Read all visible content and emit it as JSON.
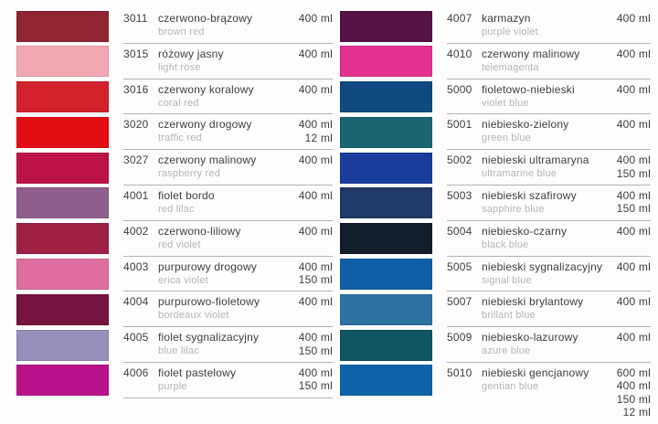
{
  "palette": {
    "background": "#fdfdfd",
    "text": "#3d3d3c",
    "muted": "#b5b4b3",
    "separator": "#b3b2b1"
  },
  "left_column": {
    "rows": [
      {
        "code": "3011",
        "name_pl": "czerwono-brązowy",
        "name_en": "brown red",
        "volumes": [
          "400 ml"
        ],
        "swatch_hex": "#8f2433"
      },
      {
        "code": "3015",
        "name_pl": "różowy jasny",
        "name_en": "light rose",
        "volumes": [
          "400 ml"
        ],
        "swatch_hex": "#f1a7b2"
      },
      {
        "code": "3016",
        "name_pl": "czerwony koralowy",
        "name_en": "coral red",
        "volumes": [
          "400 ml"
        ],
        "swatch_hex": "#d2212d"
      },
      {
        "code": "3020",
        "name_pl": "czerwony drogowy",
        "name_en": "traffic red",
        "volumes": [
          "400 ml",
          "12 ml"
        ],
        "swatch_hex": "#e30e14"
      },
      {
        "code": "3027",
        "name_pl": "czerwony malinowy",
        "name_en": "raspberry red",
        "volumes": [
          "400 ml"
        ],
        "swatch_hex": "#bc1347"
      },
      {
        "code": "4001",
        "name_pl": "fiolet bordo",
        "name_en": "red lilac",
        "volumes": [
          "400 ml"
        ],
        "swatch_hex": "#8f5e8c"
      },
      {
        "code": "4002",
        "name_pl": "czerwono-liliowy",
        "name_en": "red violet",
        "volumes": [
          "400 ml"
        ],
        "swatch_hex": "#9d2043"
      },
      {
        "code": "4003",
        "name_pl": "purpurowy drogowy",
        "name_en": "erica violet",
        "volumes": [
          "400 ml",
          "150 ml"
        ],
        "swatch_hex": "#de70a0"
      },
      {
        "code": "4004",
        "name_pl": "purpurowo-fioletowy",
        "name_en": "bordeaux violet",
        "volumes": [
          "400 ml"
        ],
        "swatch_hex": "#75123e"
      },
      {
        "code": "4005",
        "name_pl": "fiolet sygnalizacyjny",
        "name_en": "blue lilac",
        "volumes": [
          "400 ml",
          "150 ml"
        ],
        "swatch_hex": "#9690ba"
      },
      {
        "code": "4006",
        "name_pl": "fiolet pastelowy",
        "name_en": "purple",
        "volumes": [
          "400 ml",
          "150 ml"
        ],
        "swatch_hex": "#b91288"
      }
    ]
  },
  "right_column": {
    "rows": [
      {
        "code": "4007",
        "name_pl": "karmazyn",
        "name_en": "purple violet",
        "volumes": [
          "400 ml"
        ],
        "swatch_hex": "#571245"
      },
      {
        "code": "4010",
        "name_pl": "czerwony malinowy",
        "name_en": "telemagenta",
        "volumes": [
          "400 ml"
        ],
        "swatch_hex": "#e23190"
      },
      {
        "code": "5000",
        "name_pl": "fioletowo-niebieski",
        "name_en": "violet blue",
        "volumes": [
          "400 ml"
        ],
        "swatch_hex": "#114a80"
      },
      {
        "code": "5001",
        "name_pl": "niebiesko-zielony",
        "name_en": "green blue",
        "volumes": [
          "400 ml"
        ],
        "swatch_hex": "#196672"
      },
      {
        "code": "5002",
        "name_pl": "niebieski ultramaryna",
        "name_en": "ultramarine blue",
        "volumes": [
          "400 ml",
          "150 ml"
        ],
        "swatch_hex": "#1a3c9c"
      },
      {
        "code": "5003",
        "name_pl": "niebieski szafirowy",
        "name_en": "sapphire blue",
        "volumes": [
          "400 ml",
          "150 ml"
        ],
        "swatch_hex": "#1e3a65"
      },
      {
        "code": "5004",
        "name_pl": "niebiesko-czarny",
        "name_en": "black blue",
        "volumes": [
          "400 ml"
        ],
        "swatch_hex": "#141d2c"
      },
      {
        "code": "5005",
        "name_pl": "niebieski sygnalizacyjny",
        "name_en": "signal blue",
        "volumes": [
          "400 ml"
        ],
        "swatch_hex": "#0f5fa7"
      },
      {
        "code": "5007",
        "name_pl": "niebieski brylantowy",
        "name_en": "brillant blue",
        "volumes": [
          "400 ml"
        ],
        "swatch_hex": "#2d73a2"
      },
      {
        "code": "5009",
        "name_pl": "niebiesko-lazurowy",
        "name_en": "azure blue",
        "volumes": [
          "400 ml"
        ],
        "swatch_hex": "#105560"
      },
      {
        "code": "5010",
        "name_pl": "niebieski gencjanowy",
        "name_en": "gentian blue",
        "volumes": [
          "600 ml",
          "400 ml",
          "150 ml",
          "12 ml"
        ],
        "swatch_hex": "#0f63a9"
      }
    ]
  }
}
